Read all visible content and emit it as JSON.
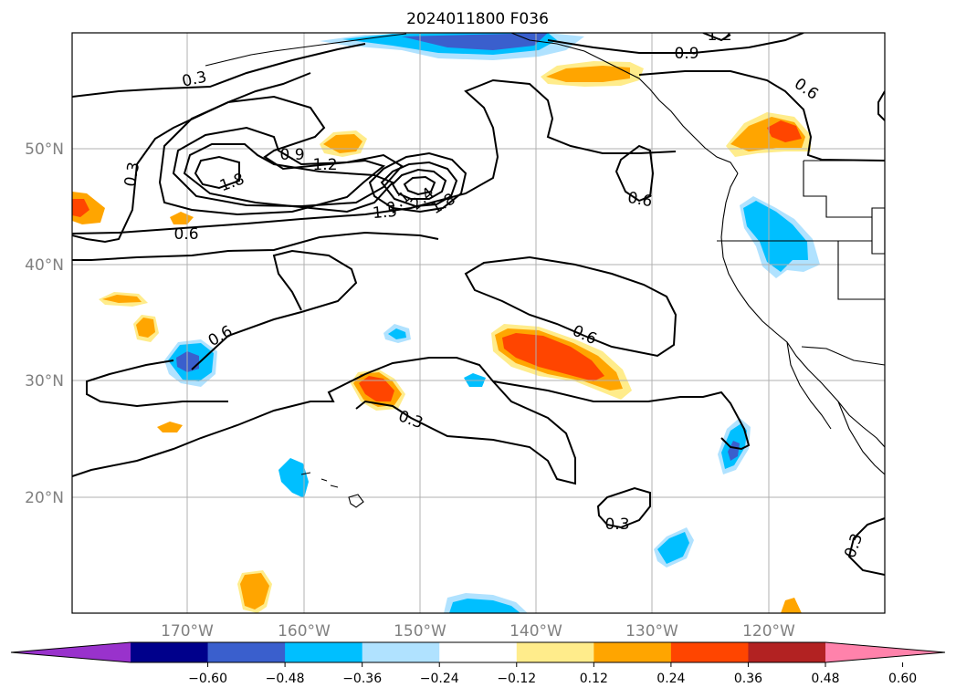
{
  "title": "2024011800 F036",
  "lat_ticks": [
    "50°N",
    "40°N",
    "30°N",
    "20°N"
  ],
  "lon_ticks": [
    "170°W",
    "160°W",
    "150°W",
    "140°W",
    "130°W",
    "120°W"
  ],
  "colorbar": {
    "tick_labels": [
      "−0.60",
      "−0.48",
      "−0.36",
      "−0.24",
      "−0.12",
      "0.12",
      "0.24",
      "0.36",
      "0.48",
      "0.60"
    ],
    "colors": [
      "#9932cc",
      "#00008b",
      "#3a5fcd",
      "#00bfff",
      "#b0e2ff",
      "#ffffff",
      "#ffec8b",
      "#ffa500",
      "#ff4500",
      "#b22222",
      "#ff82ab"
    ]
  },
  "contour_labels": [
    "0.3",
    "0.3",
    "0.3",
    "0.3",
    "0.3",
    "0.6",
    "0.6",
    "0.6",
    "0.6",
    "0.6",
    "0.9",
    "0.9",
    "1.2",
    "1.2",
    "1.5",
    "1.8",
    "2.1",
    "2.4",
    "1.8"
  ],
  "colors": {
    "grid": "#b0b0b0",
    "contour": "#000000",
    "coast": "#000000"
  }
}
